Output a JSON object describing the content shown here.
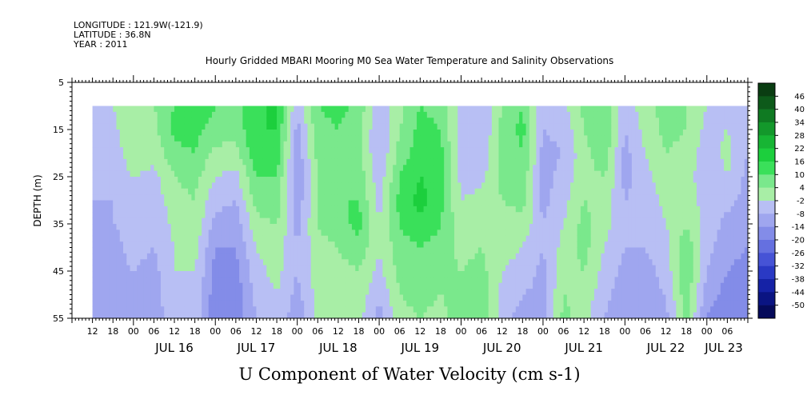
{
  "header": {
    "longitude": "LONGITUDE : 121.9W(-121.9)",
    "latitude": "LATITUDE : 36.8N",
    "year": "YEAR : 2011"
  },
  "chart_data": {
    "type": "heatmap",
    "title": "Hourly Gridded MBARI Mooring M0 Sea Water Temperature and Salinity Observations",
    "xlabel": "U Component of Water Velocity (cm s-1)",
    "ylabel": "DEPTH (m)",
    "ylim": [
      55,
      5
    ],
    "y_ticks": [
      "5",
      "15",
      "25",
      "35",
      "45",
      "55"
    ],
    "x_range": [
      "JUL 15 06:00",
      "JUL 23 12:00"
    ],
    "data_range": {
      "start": "JUL 15 12:00",
      "end": "JUL 23 12:00",
      "depth_top": 10,
      "depth_bottom": 55
    },
    "x_hour_ticks": [
      "12",
      "18",
      "00",
      "06",
      "12",
      "18",
      "00",
      "06",
      "12",
      "18",
      "00",
      "06",
      "12",
      "18",
      "00",
      "06",
      "12",
      "18",
      "00",
      "06",
      "12",
      "18",
      "00",
      "06",
      "12",
      "18",
      "00",
      "06",
      "12",
      "18",
      "00",
      "06"
    ],
    "x_date_labels": [
      "JUL 16",
      "JUL 17",
      "JUL 18",
      "JUL 19",
      "JUL 20",
      "JUL 21",
      "JUL 22",
      "JUL 23"
    ],
    "colorbar": {
      "levels": [
        "46",
        "40",
        "34",
        "28",
        "22",
        "16",
        "10",
        "4",
        "-2",
        "-8",
        "-14",
        "-20",
        "-26",
        "-32",
        "-38",
        "-44",
        "-50"
      ],
      "colors": [
        "#0a3d12",
        "#0d5a1a",
        "#0f7a22",
        "#13982b",
        "#17b534",
        "#1ccf3d",
        "#3ae05a",
        "#7ae88c",
        "#a8eea6",
        "#b8bff4",
        "#9fa6ef",
        "#838ce8",
        "#6570e0",
        "#4653d6",
        "#2a39c4",
        "#1522a6",
        "#0a1482",
        "#050a5a"
      ]
    },
    "depth_rows": [
      10,
      15,
      20,
      25,
      30,
      35,
      40,
      45,
      50,
      55
    ],
    "columns": [
      {
        "time": "JUL 15 12:00",
        "u": [
          -6,
          -6,
          -6,
          -8,
          -8,
          -10,
          -10,
          -12,
          -12,
          -12
        ]
      },
      {
        "time": "JUL 15 18:00",
        "u": [
          -2,
          -4,
          -6,
          -6,
          -8,
          -8,
          -10,
          -10,
          -12,
          -12
        ]
      },
      {
        "time": "JUL 16 00:00",
        "u": [
          2,
          4,
          2,
          -2,
          -4,
          -6,
          -6,
          -8,
          -8,
          -10
        ]
      },
      {
        "time": "JUL 16 06:00",
        "u": [
          4,
          2,
          0,
          -4,
          -6,
          -8,
          -8,
          -10,
          -10,
          -10
        ]
      },
      {
        "time": "JUL 16 12:00",
        "u": [
          10,
          12,
          8,
          4,
          2,
          0,
          -2,
          -2,
          -4,
          -6
        ]
      },
      {
        "time": "JUL 16 18:00",
        "u": [
          14,
          12,
          10,
          6,
          4,
          2,
          0,
          -2,
          -2,
          -4
        ]
      },
      {
        "time": "JUL 17 00:00",
        "u": [
          10,
          8,
          2,
          -2,
          -6,
          -10,
          -14,
          -16,
          -18,
          -20
        ]
      },
      {
        "time": "JUL 17 06:00",
        "u": [
          8,
          6,
          2,
          -4,
          -8,
          -12,
          -14,
          -16,
          -18,
          -18
        ]
      },
      {
        "time": "JUL 17 12:00",
        "u": [
          14,
          16,
          14,
          10,
          6,
          2,
          -2,
          -4,
          -6,
          -8
        ]
      },
      {
        "time": "JUL 17 18:00",
        "u": [
          18,
          16,
          14,
          10,
          8,
          4,
          2,
          0,
          -2,
          -4
        ]
      },
      {
        "time": "JUL 18 00:00",
        "u": [
          -8,
          -10,
          -12,
          -14,
          -12,
          -10,
          -8,
          -8,
          -10,
          -12
        ]
      },
      {
        "time": "JUL 18 06:00",
        "u": [
          10,
          8,
          6,
          4,
          4,
          4,
          2,
          2,
          0,
          0
        ]
      },
      {
        "time": "JUL 18 12:00",
        "u": [
          12,
          10,
          8,
          8,
          10,
          8,
          4,
          2,
          0,
          -2
        ]
      },
      {
        "time": "JUL 18 18:00",
        "u": [
          8,
          6,
          6,
          8,
          10,
          12,
          8,
          4,
          2,
          0
        ]
      },
      {
        "time": "JUL 19 00:00",
        "u": [
          -6,
          -8,
          -8,
          -6,
          -4,
          -2,
          -2,
          -4,
          -8,
          -10
        ]
      },
      {
        "time": "JUL 19 06:00",
        "u": [
          2,
          4,
          6,
          10,
          12,
          10,
          8,
          6,
          4,
          2
        ]
      },
      {
        "time": "JUL 19 12:00",
        "u": [
          10,
          12,
          14,
          16,
          18,
          14,
          10,
          8,
          6,
          4
        ]
      },
      {
        "time": "JUL 19 18:00",
        "u": [
          8,
          10,
          12,
          14,
          12,
          10,
          8,
          6,
          4,
          2
        ]
      },
      {
        "time": "JUL 20 00:00",
        "u": [
          -4,
          -6,
          -6,
          -4,
          -2,
          0,
          2,
          4,
          6,
          8
        ]
      },
      {
        "time": "JUL 20 06:00",
        "u": [
          -8,
          -8,
          -6,
          -4,
          0,
          2,
          4,
          6,
          8,
          10
        ]
      },
      {
        "time": "JUL 20 12:00",
        "u": [
          4,
          6,
          6,
          6,
          4,
          2,
          0,
          -2,
          -4,
          -6
        ]
      },
      {
        "time": "JUL 20 18:00",
        "u": [
          10,
          12,
          10,
          8,
          6,
          2,
          -2,
          -4,
          -8,
          -10
        ]
      },
      {
        "time": "JUL 21 00:00",
        "u": [
          -6,
          -8,
          -10,
          -10,
          -10,
          -8,
          -8,
          -10,
          -10,
          -12
        ]
      },
      {
        "time": "JUL 21 06:00",
        "u": [
          -4,
          -6,
          -8,
          -6,
          -4,
          -2,
          0,
          2,
          4,
          6
        ]
      },
      {
        "time": "JUL 21 12:00",
        "u": [
          6,
          4,
          2,
          2,
          4,
          6,
          6,
          4,
          2,
          0
        ]
      },
      {
        "time": "JUL 21 18:00",
        "u": [
          8,
          10,
          8,
          4,
          2,
          0,
          -2,
          -4,
          -6,
          -8
        ]
      },
      {
        "time": "JUL 22 00:00",
        "u": [
          -6,
          -8,
          -10,
          -10,
          -8,
          -6,
          -8,
          -10,
          -12,
          -12
        ]
      },
      {
        "time": "JUL 22 06:00",
        "u": [
          2,
          0,
          -2,
          -4,
          -6,
          -8,
          -8,
          -10,
          -10,
          -12
        ]
      },
      {
        "time": "JUL 22 12:00",
        "u": [
          6,
          6,
          4,
          2,
          0,
          -2,
          -4,
          -6,
          -8,
          -10
        ]
      },
      {
        "time": "JUL 22 18:00",
        "u": [
          4,
          4,
          2,
          2,
          2,
          4,
          8,
          10,
          8,
          6
        ]
      },
      {
        "time": "JUL 23 00:00",
        "u": [
          -2,
          -4,
          -6,
          -8,
          -6,
          -4,
          -6,
          -8,
          -12,
          -14
        ]
      },
      {
        "time": "JUL 23 06:00",
        "u": [
          -4,
          -2,
          0,
          -2,
          -6,
          -10,
          -12,
          -14,
          -16,
          -18
        ]
      },
      {
        "time": "JUL 23 12:00",
        "u": [
          -6,
          -6,
          -8,
          -10,
          -10,
          -12,
          -14,
          -16,
          -18,
          -20
        ]
      }
    ]
  }
}
